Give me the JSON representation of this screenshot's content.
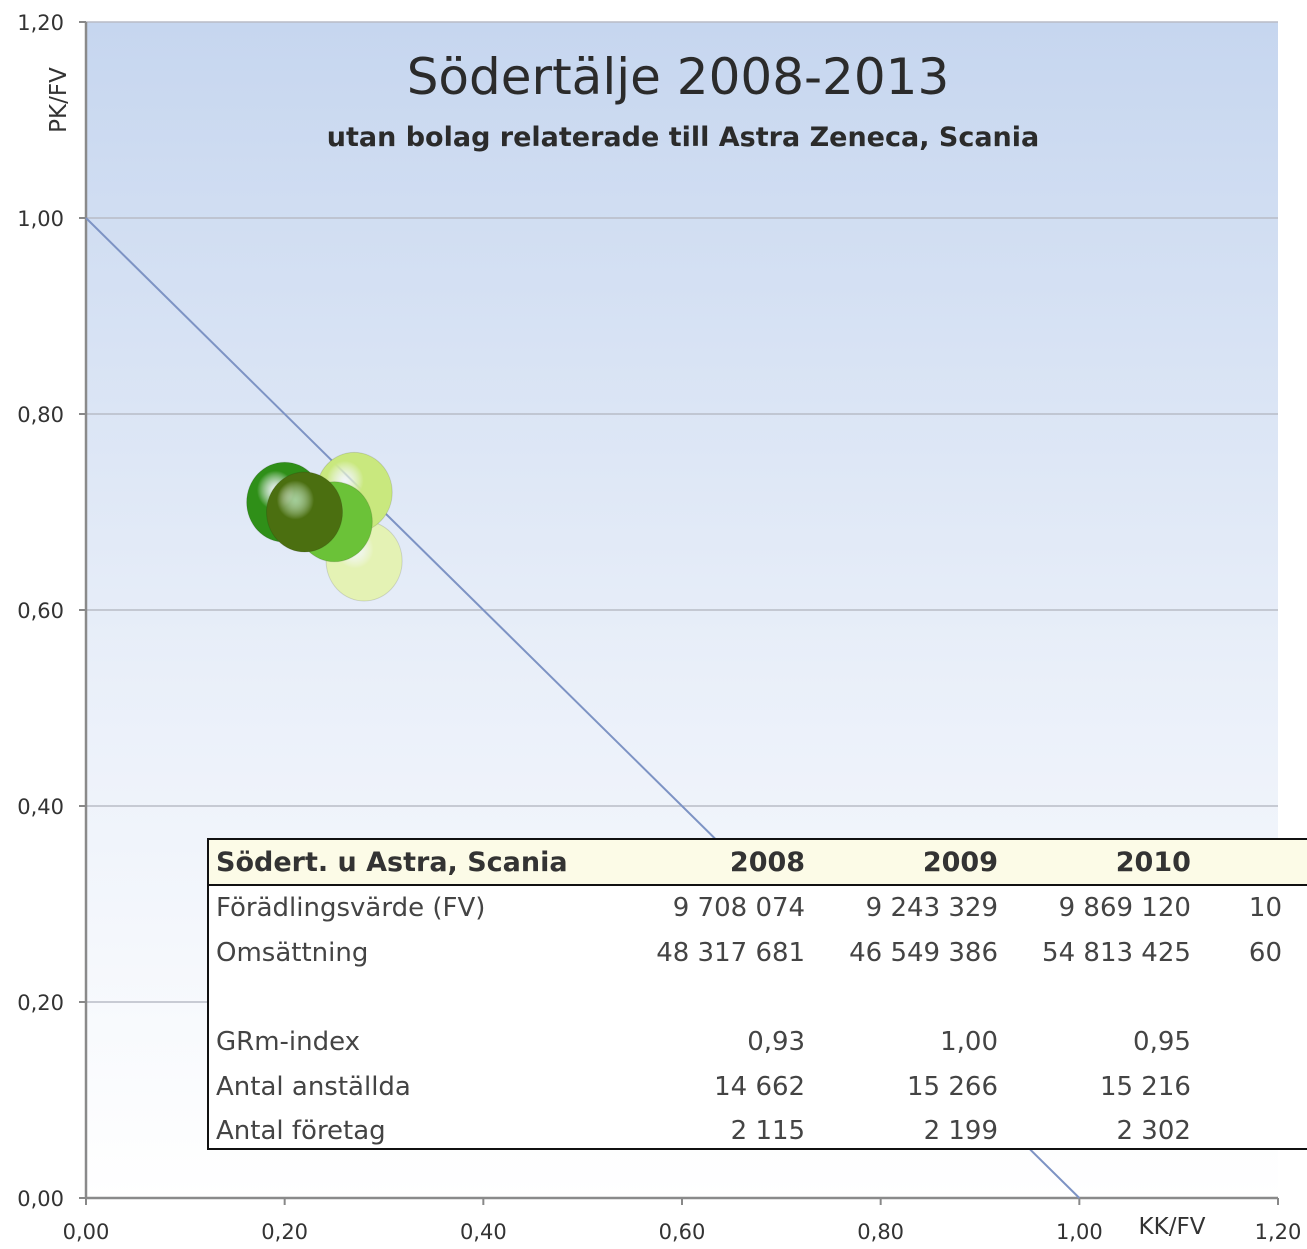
{
  "chart_data": {
    "type": "scatter",
    "title": "Södertälje 2008-2013",
    "subtitle": "utan bolag relaterade till Astra Zeneca, Scania",
    "xlabel": "KK/FV",
    "ylabel": "PK/FV",
    "xlim": [
      0,
      1.2
    ],
    "ylim": [
      0,
      1.2
    ],
    "x_ticks": [
      "0,00",
      "0,20",
      "0,40",
      "0,60",
      "0,80",
      "1,00",
      "1,20"
    ],
    "y_ticks": [
      "0,00",
      "0,20",
      "0,40",
      "0,60",
      "0,80",
      "1,00",
      "1,20"
    ],
    "grid": true,
    "reference_line": {
      "from": [
        0,
        1
      ],
      "to": [
        1,
        0
      ]
    },
    "points": [
      {
        "x": 0.28,
        "y": 0.65,
        "color": "#e4f2b4"
      },
      {
        "x": 0.27,
        "y": 0.72,
        "color": "#c9e87e"
      },
      {
        "x": 0.25,
        "y": 0.69,
        "color": "#6bc238"
      },
      {
        "x": 0.2,
        "y": 0.71,
        "color": "#2f8f18"
      },
      {
        "x": 0.22,
        "y": 0.7,
        "color": "#4b6f10"
      }
    ]
  },
  "table": {
    "header": [
      "Södert. u Astra, Scania",
      "2008",
      "2009",
      "2010",
      ""
    ],
    "rows": [
      {
        "label": "Förädlingsvärde (FV)",
        "values": [
          "9 708 074",
          "9 243 329",
          "9 869 120",
          "10"
        ]
      },
      {
        "label": "Omsättning",
        "values": [
          "48 317 681",
          "46 549 386",
          "54 813 425",
          "60"
        ]
      },
      {
        "label": "GRm-index",
        "values": [
          "0,93",
          "1,00",
          "0,95",
          ""
        ]
      },
      {
        "label": "Antal anställda",
        "values": [
          "14 662",
          "15 266",
          "15 216",
          ""
        ]
      },
      {
        "label": "Antal företag",
        "values": [
          "2 115",
          "2 199",
          "2 302",
          ""
        ]
      }
    ]
  }
}
